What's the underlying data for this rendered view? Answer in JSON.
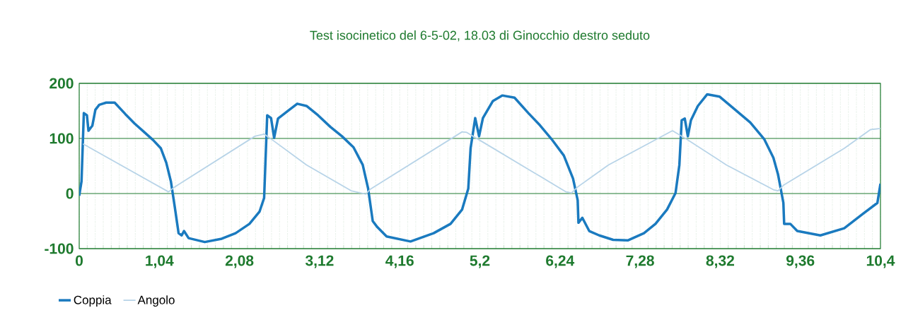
{
  "chart_data": {
    "type": "line",
    "title": "Test isocinetico del 6-5-02, 18.03 di Ginocchio destro seduto",
    "xlim": [
      0,
      10.4
    ],
    "ylim": [
      -100,
      200
    ],
    "xticks": [
      0,
      {
        "value": 1.04,
        "label": "1,04"
      },
      {
        "value": 2.08,
        "label": "2,08"
      },
      {
        "value": 3.12,
        "label": "3,12"
      },
      {
        "value": 4.16,
        "label": "4,16"
      },
      {
        "value": 5.2,
        "label": "5,2"
      },
      {
        "value": 6.24,
        "label": "6,24"
      },
      {
        "value": 7.28,
        "label": "7,28"
      },
      {
        "value": 8.32,
        "label": "8,32"
      },
      {
        "value": 9.36,
        "label": "9,36"
      },
      {
        "value": 10.4,
        "label": "10,4"
      }
    ],
    "yticks": [
      -100,
      0,
      100,
      200
    ],
    "grid": true,
    "legend": "bottom left",
    "series": [
      {
        "name": "Coppia",
        "color": "#1a7abf",
        "x": [
          0,
          0.03,
          0.06,
          0.1,
          0.12,
          0.17,
          0.21,
          0.26,
          0.35,
          0.46,
          0.6,
          0.72,
          0.84,
          0.96,
          1.06,
          1.13,
          1.19,
          1.24,
          1.29,
          1.33,
          1.36,
          1.42,
          1.63,
          1.85,
          2.03,
          2.21,
          2.34,
          2.4,
          2.44,
          2.49,
          2.53,
          2.58,
          2.71,
          2.83,
          2.95,
          3.1,
          3.26,
          3.41,
          3.56,
          3.68,
          3.75,
          3.81,
          3.87,
          3.99,
          4.3,
          4.6,
          4.82,
          4.97,
          5.05,
          5.08,
          5.14,
          5.19,
          5.24,
          5.37,
          5.49,
          5.65,
          5.83,
          5.98,
          6.13,
          6.29,
          6.41,
          6.47,
          6.48,
          6.53,
          6.62,
          6.75,
          6.93,
          7.12,
          7.33,
          7.48,
          7.63,
          7.74,
          7.79,
          7.82,
          7.86,
          7.9,
          7.94,
          8.03,
          8.15,
          8.31,
          8.49,
          8.71,
          8.89,
          9.01,
          9.07,
          9.14,
          9.15,
          9.23,
          9.32,
          9.62,
          9.93,
          10.17,
          10.36,
          10.4
        ],
        "values": [
          -4,
          22,
          146,
          142,
          114,
          123,
          152,
          161,
          165,
          165,
          144,
          127,
          112,
          97,
          82,
          56,
          22,
          -24,
          -72,
          -76,
          -68,
          -81,
          -88,
          -82,
          -72,
          -55,
          -33,
          -8,
          142,
          137,
          101,
          136,
          150,
          163,
          159,
          142,
          121,
          104,
          84,
          52,
          9,
          -50,
          -61,
          -78,
          -87,
          -72,
          -55,
          -29,
          9,
          82,
          137,
          104,
          137,
          168,
          178,
          174,
          146,
          124,
          99,
          69,
          27,
          -12,
          -53,
          -44,
          -68,
          -76,
          -84,
          -85,
          -72,
          -55,
          -29,
          1,
          52,
          133,
          136,
          104,
          133,
          159,
          180,
          176,
          155,
          129,
          99,
          65,
          35,
          -17,
          -55,
          -55,
          -68,
          -76,
          -63,
          -37,
          -17,
          18
        ]
      },
      {
        "name": "Angolo",
        "color": "#b8d4e8",
        "x": [
          0.05,
          1.16,
          1.24,
          2.28,
          2.4,
          2.53,
          2.95,
          3.53,
          3.72,
          3.78,
          4.97,
          5.03,
          5.22,
          5.83,
          6.32,
          6.39,
          6.47,
          6.87,
          7.7,
          7.88,
          8.4,
          9.01,
          9.07,
          9.14,
          9.93,
          10.27,
          10.4
        ],
        "values": [
          90,
          3,
          12,
          104,
          108,
          95,
          52,
          5,
          -1,
          8,
          112,
          111,
          95,
          44,
          3,
          1,
          12,
          52,
          114,
          99,
          52,
          7,
          5,
          15,
          82,
          116,
          118
        ]
      }
    ]
  }
}
